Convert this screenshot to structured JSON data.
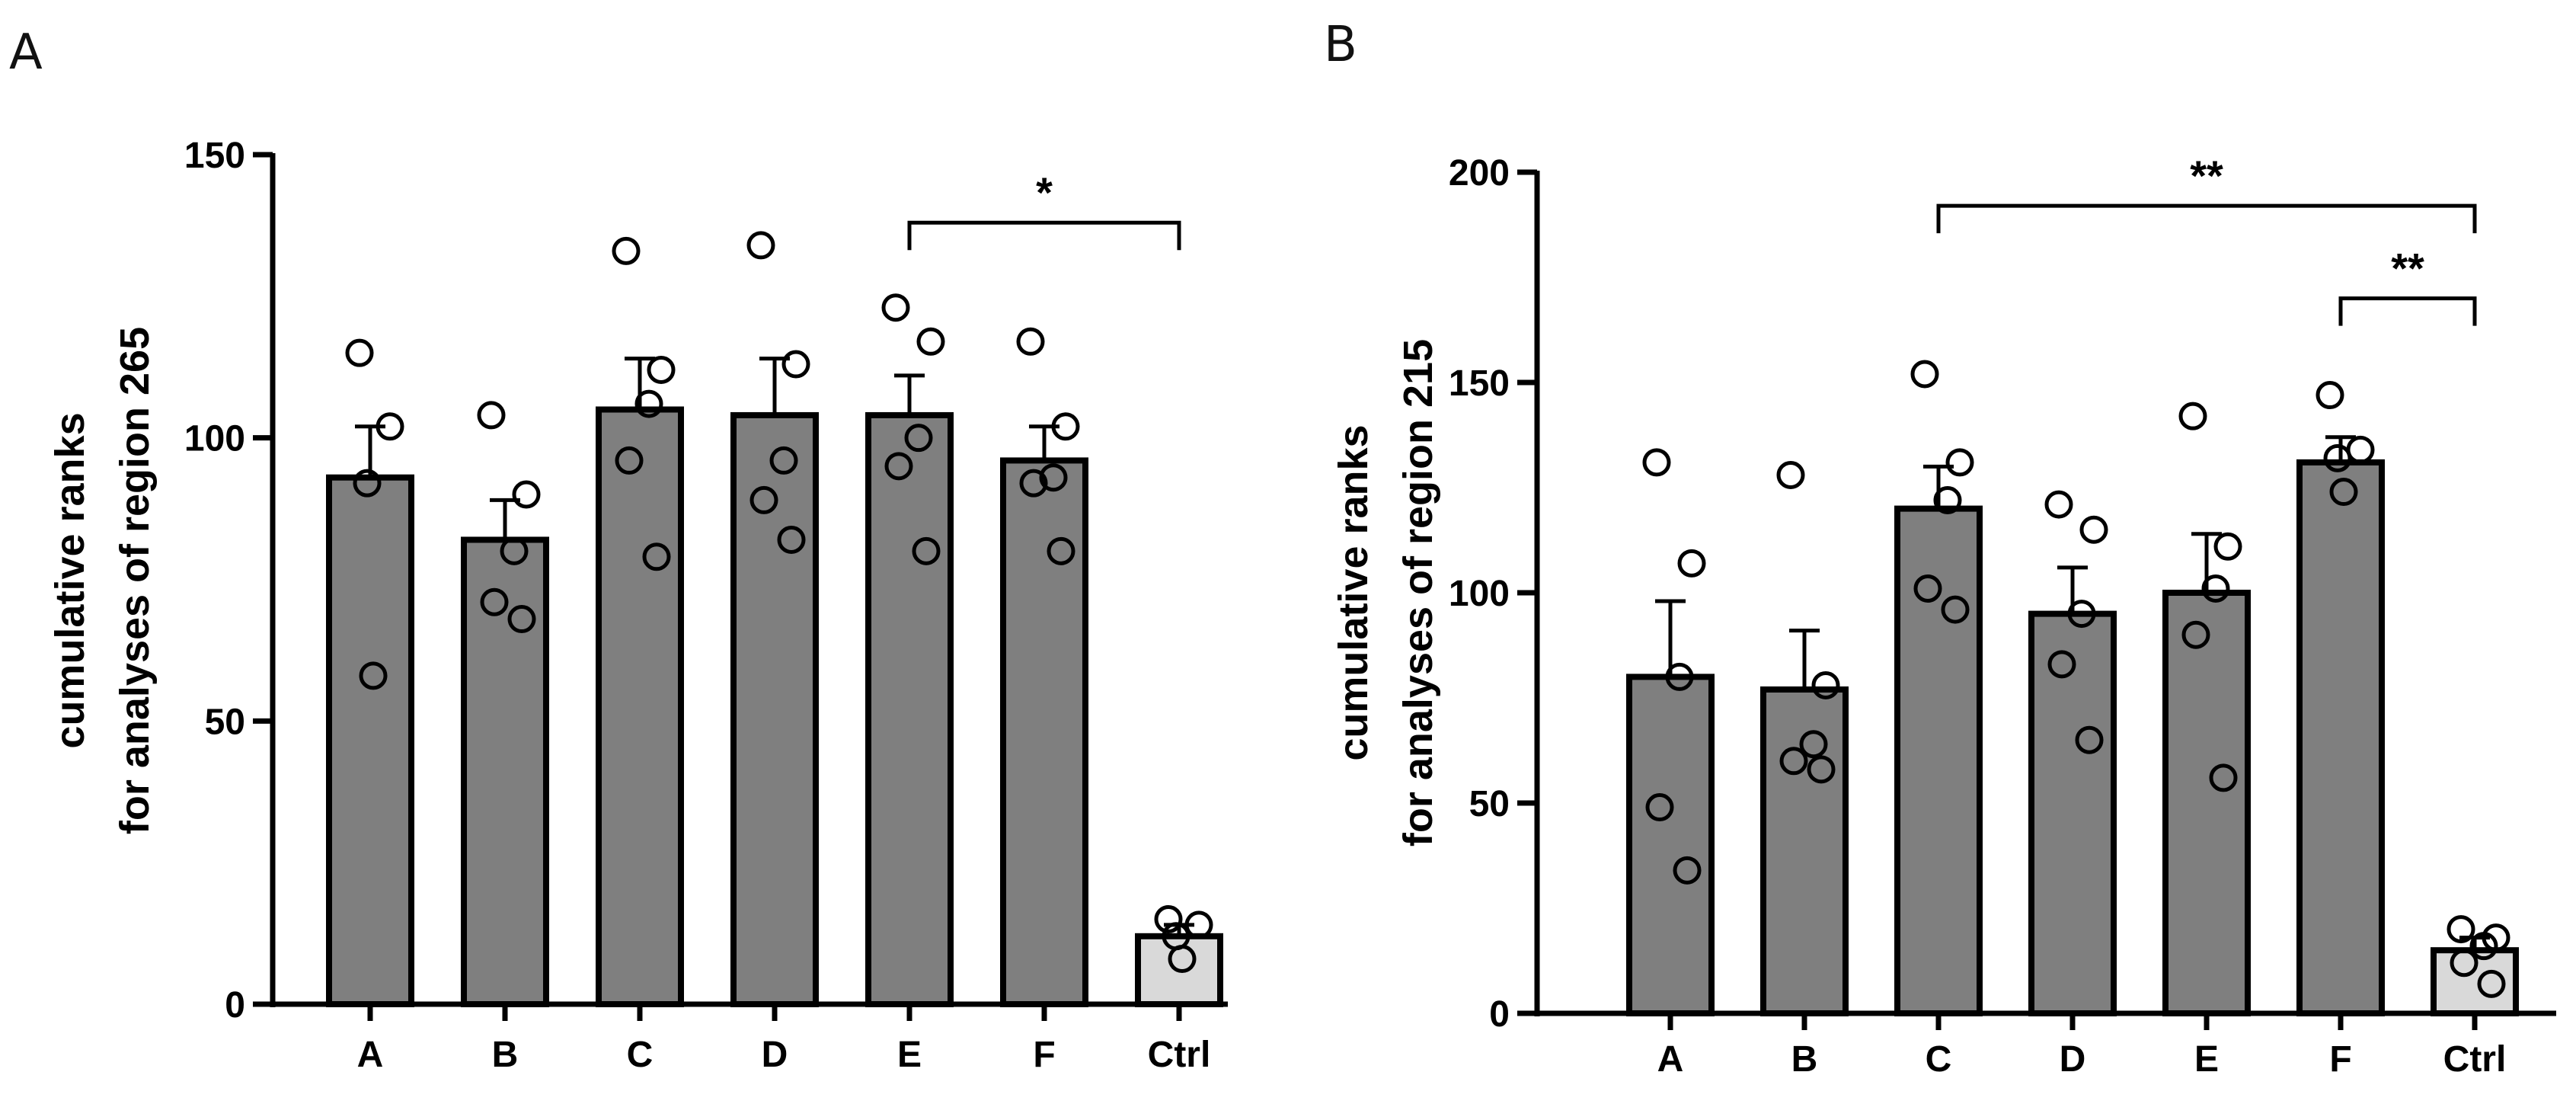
{
  "chart_data": [
    {
      "panel": "A",
      "type": "bar",
      "ylabel": [
        "cumulative ranks",
        "for analyses of region 265"
      ],
      "ylim": [
        0,
        150
      ],
      "yticks": [
        0,
        50,
        100,
        150
      ],
      "categories": [
        "A",
        "B",
        "C",
        "D",
        "E",
        "F",
        "Ctrl"
      ],
      "values": [
        93,
        82,
        105,
        104,
        104,
        96,
        12
      ],
      "errors": [
        9,
        7,
        9,
        10,
        7,
        6,
        2
      ],
      "points": [
        [
          115,
          102,
          92,
          58
        ],
        [
          104,
          90,
          80,
          71,
          68
        ],
        [
          133,
          112,
          106,
          96,
          79
        ],
        [
          134,
          113,
          96,
          89,
          82
        ],
        [
          123,
          117,
          100,
          95,
          80
        ],
        [
          117,
          102,
          93,
          92,
          80
        ],
        [
          15,
          14,
          12,
          8
        ]
      ],
      "bar_colors": [
        "#7f7f7f",
        "#7f7f7f",
        "#7f7f7f",
        "#7f7f7f",
        "#7f7f7f",
        "#7f7f7f",
        "#d9d9d9"
      ],
      "significance": [
        {
          "from": "E",
          "to": "Ctrl",
          "y": 138,
          "label": "*"
        }
      ]
    },
    {
      "panel": "B",
      "type": "bar",
      "ylabel": [
        "cumulative ranks",
        "for analyses of region 215"
      ],
      "ylim": [
        0,
        200
      ],
      "yticks": [
        0,
        50,
        100,
        150,
        200
      ],
      "categories": [
        "A",
        "B",
        "C",
        "D",
        "E",
        "F",
        "Ctrl"
      ],
      "values": [
        80,
        77,
        120,
        95,
        100,
        131,
        15
      ],
      "errors": [
        18,
        14,
        10,
        11,
        14,
        6,
        3
      ],
      "points": [
        [
          131,
          107,
          80,
          49,
          34
        ],
        [
          128,
          78,
          64,
          60,
          58
        ],
        [
          152,
          131,
          122,
          101,
          96
        ],
        [
          121,
          115,
          95,
          83,
          65
        ],
        [
          142,
          111,
          101,
          90,
          56
        ],
        [
          147,
          134,
          132,
          124
        ],
        [
          20,
          18,
          16,
          12,
          7
        ]
      ],
      "bar_colors": [
        "#7f7f7f",
        "#7f7f7f",
        "#7f7f7f",
        "#7f7f7f",
        "#7f7f7f",
        "#7f7f7f",
        "#d9d9d9"
      ],
      "significance": [
        {
          "from": "C",
          "to": "Ctrl",
          "y": 192,
          "label": "**"
        },
        {
          "from": "F",
          "to": "Ctrl",
          "y": 170,
          "label": "**"
        }
      ]
    }
  ]
}
